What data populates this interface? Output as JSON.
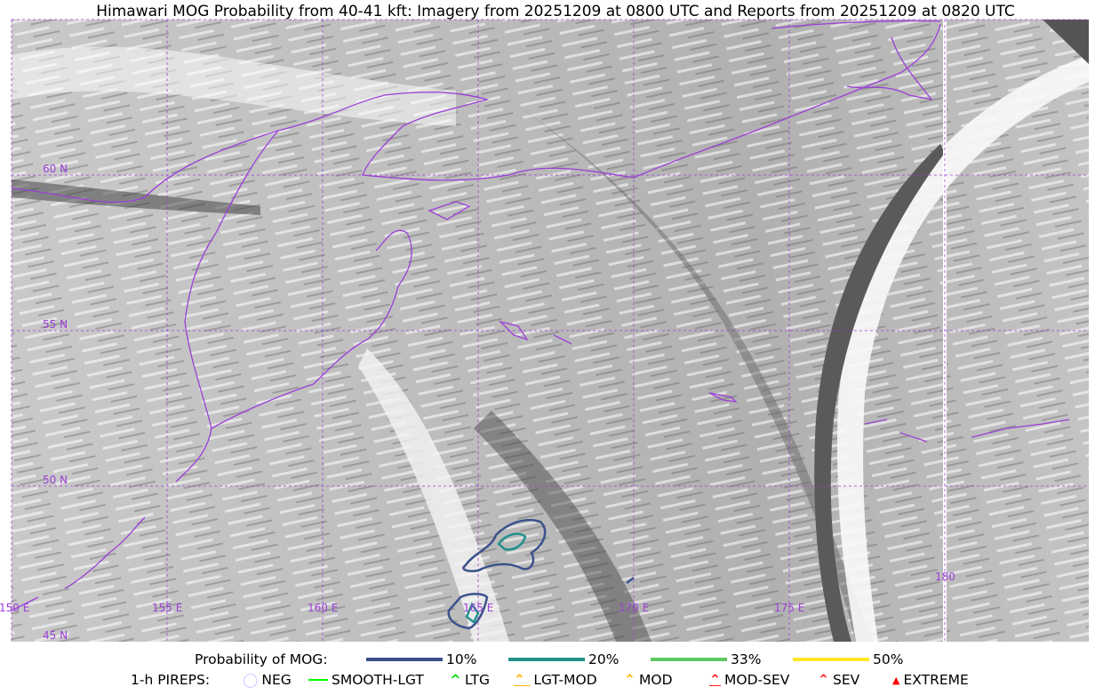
{
  "title": "Himawari MOG Probability from 40-41 kft: Imagery from 20251209 at 0800 UTC and Reports from 20251209 at 0820 UTC",
  "map": {
    "lat_labels": [
      "60 N",
      "55 N",
      "50 N",
      "45 N"
    ],
    "lon_labels": [
      "150 E",
      "155 E",
      "160 E",
      "165 E",
      "170 E",
      "175 E",
      "180"
    ],
    "coastline_color": "#9b3fd6",
    "grid_color": "#9b3fd6"
  },
  "legend": {
    "probability_label": "Probability of MOG:",
    "probability_levels": [
      {
        "label": "10%",
        "color": "#3b528b"
      },
      {
        "label": "20%",
        "color": "#21918c"
      },
      {
        "label": "33%",
        "color": "#5ec962"
      },
      {
        "label": "50%",
        "color": "#fde725"
      }
    ],
    "pireps_label": "1-h PIREPS:",
    "pireps": [
      {
        "label": "NEG",
        "color": "#c8c8ff",
        "icon": "neg-circle-icon"
      },
      {
        "label": "SMOOTH-LGT",
        "color": "#00ff00",
        "icon": "line-icon"
      },
      {
        "label": "LTG",
        "color": "#00e000",
        "icon": "caret-icon"
      },
      {
        "label": "LGT-MOD",
        "color": "#ffb000",
        "icon": "caret-bar-icon"
      },
      {
        "label": "MOD",
        "color": "#ffb000",
        "icon": "caret-icon"
      },
      {
        "label": "MOD-SEV",
        "color": "#ff2020",
        "icon": "double-caret-bar-icon"
      },
      {
        "label": "SEV",
        "color": "#ff2020",
        "icon": "double-caret-icon"
      },
      {
        "label": "EXTREME",
        "color": "#ff0000",
        "icon": "filled-triangle-icon"
      }
    ]
  }
}
